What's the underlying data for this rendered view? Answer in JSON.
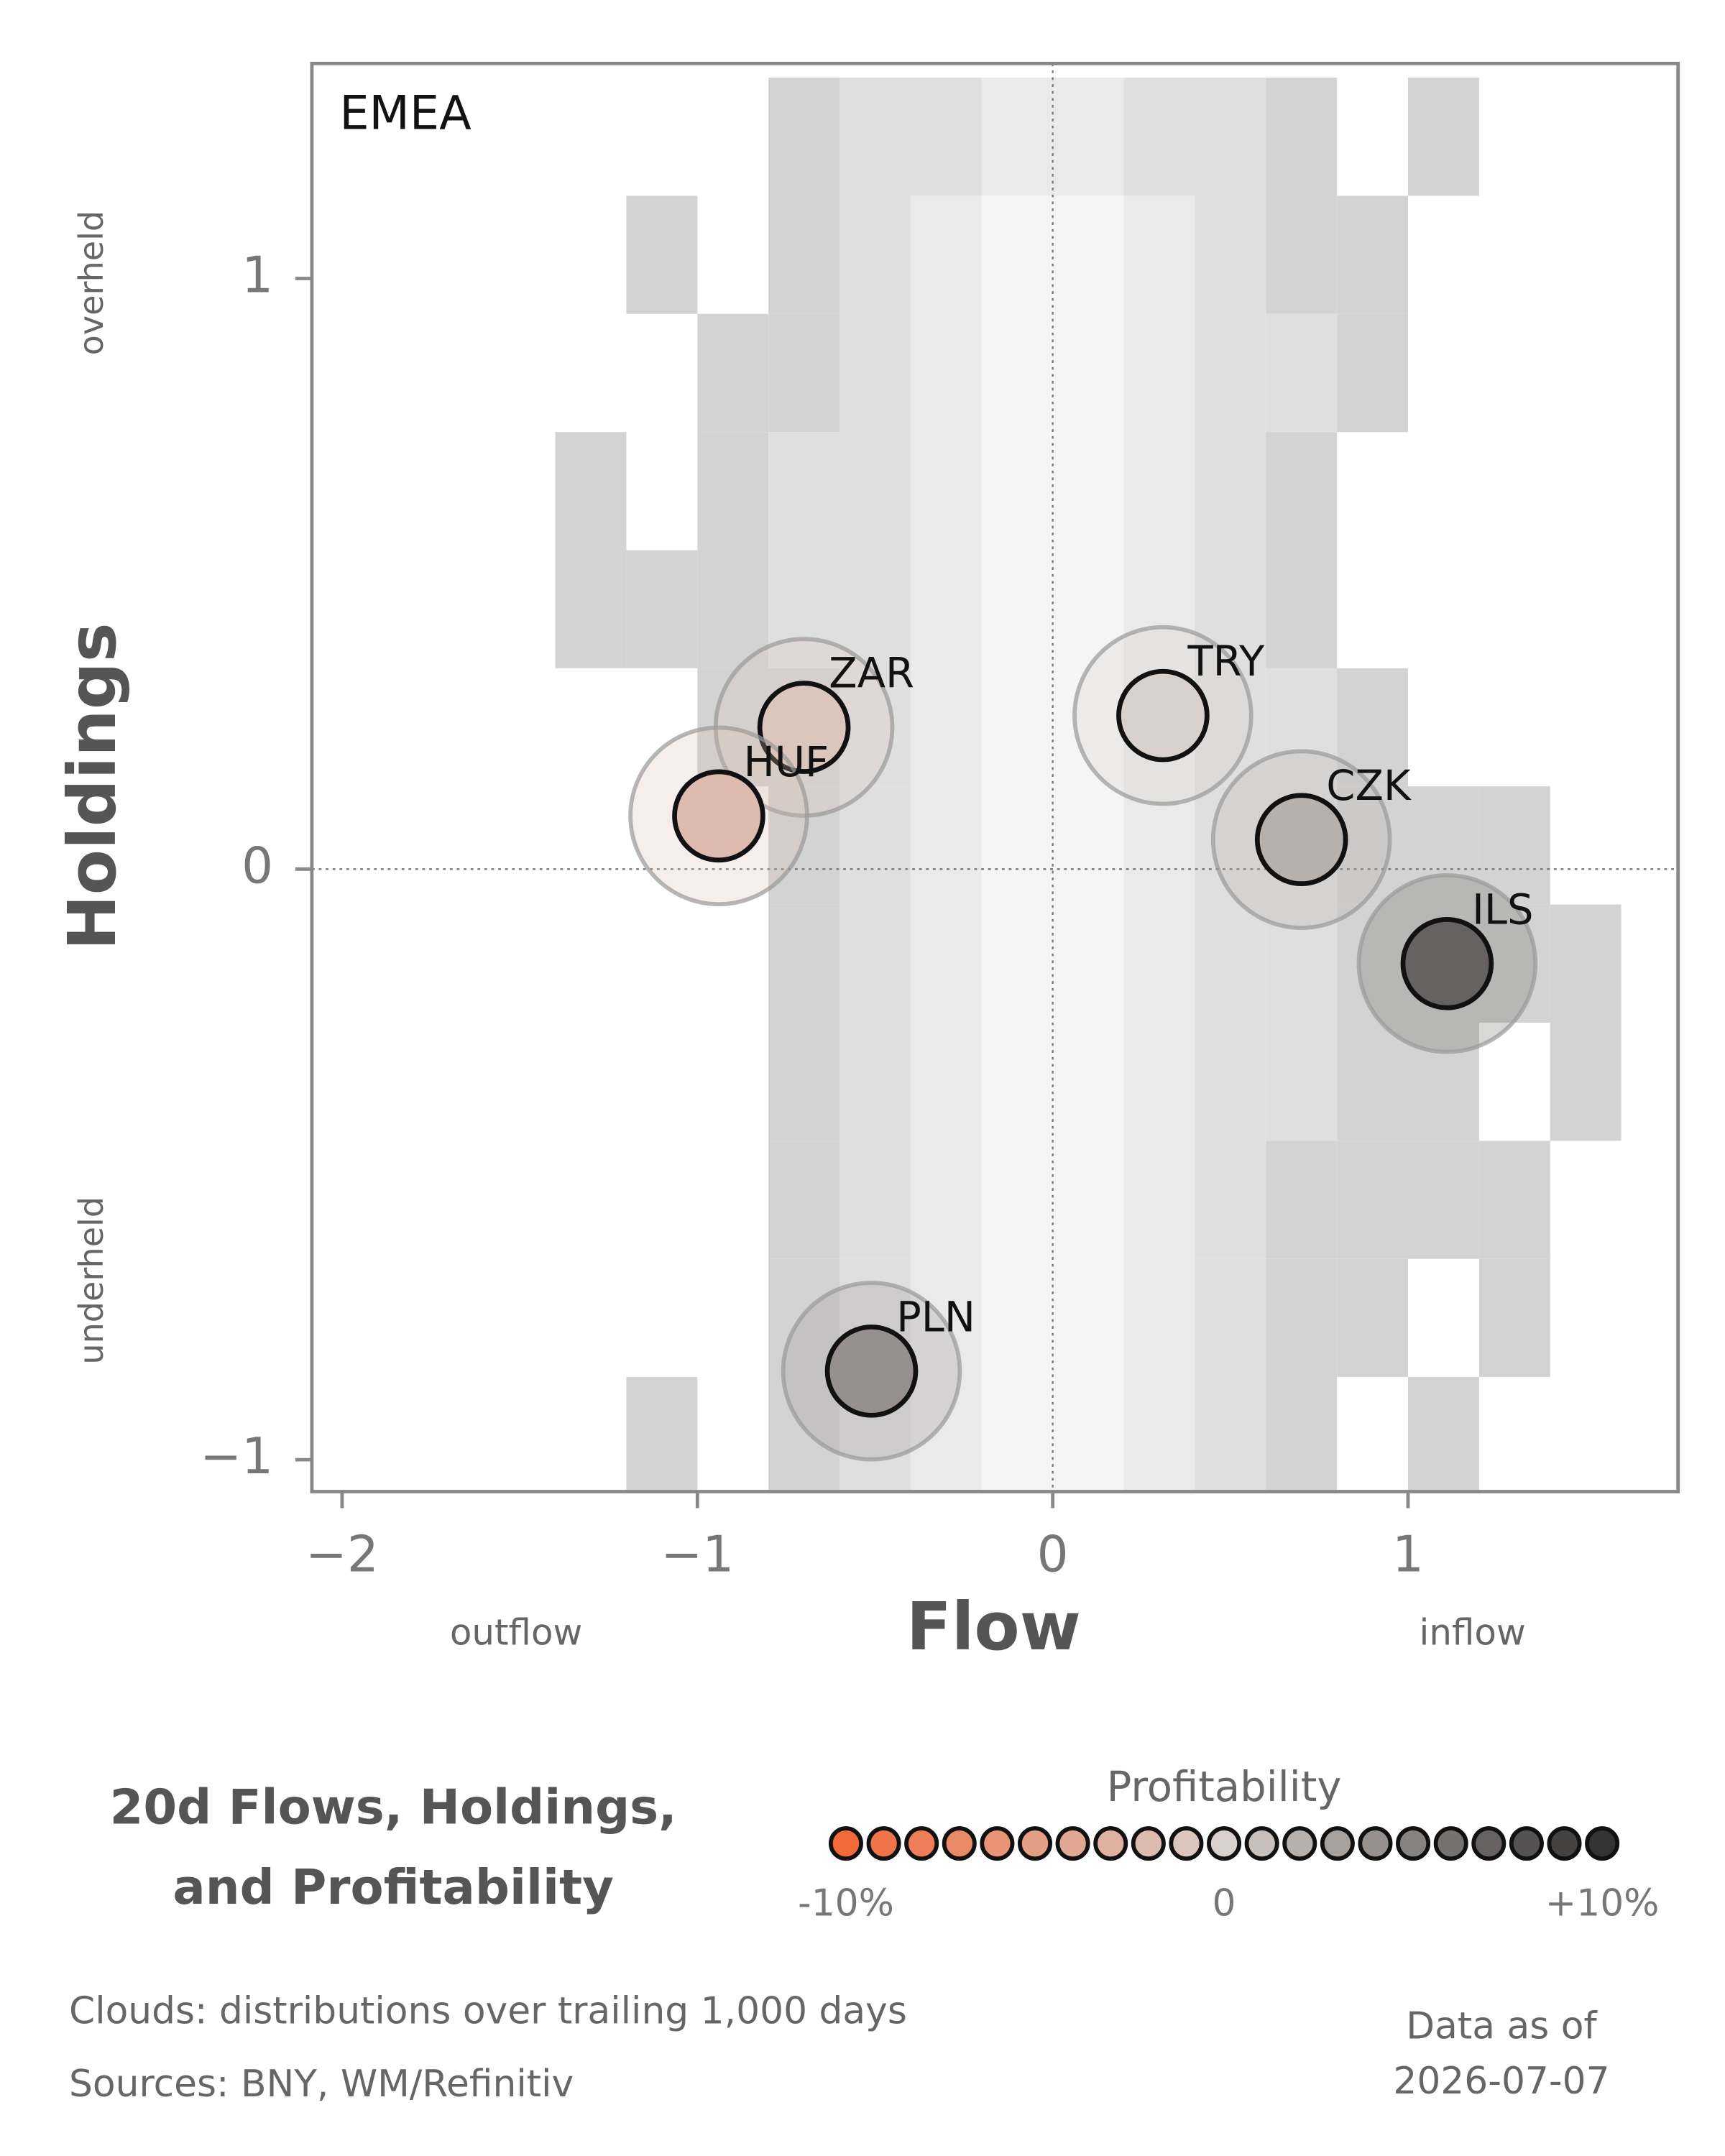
{
  "chart_data": {
    "type": "scatter",
    "panel_label": "EMEA",
    "x_label": "Flow",
    "y_label": "Holdings",
    "x_low_label": "outflow",
    "x_high_label": "inflow",
    "y_high_label": "overheld",
    "y_low_label": "underheld",
    "xlim": [
      -2.085,
      1.76
    ],
    "ylim": [
      -1.054,
      1.364
    ],
    "xticks": [
      {
        "value": -2,
        "label": "−2"
      },
      {
        "value": -1,
        "label": "−1"
      },
      0,
      1
    ],
    "yticks": [
      {
        "value": -1,
        "label": "−1"
      },
      0,
      1
    ],
    "labels": [
      "ZAR",
      "HUF",
      "TRY",
      "CZK",
      "ILS",
      "PLN"
    ],
    "x": [
      -0.7,
      -0.94,
      0.31,
      0.7,
      1.11,
      -0.51
    ],
    "y": [
      0.24,
      0.09,
      0.26,
      0.05,
      -0.16,
      -0.85
    ],
    "profitability": [
      -1,
      -2,
      0,
      2,
      7,
      4
    ],
    "clim": [
      -10,
      10
    ],
    "colors": [
      "#f26a3a",
      "#d8d0cc",
      "#333333"
    ],
    "cloud": {
      "x_edges": [
        -1.4,
        -1.2,
        -1.0,
        -0.8,
        -0.6,
        -0.4,
        -0.2,
        0.0,
        0.2,
        0.4,
        0.6,
        0.8,
        1.0,
        1.2,
        1.4,
        1.6
      ],
      "y_edges": [
        1.34,
        1.14,
        0.94,
        0.74,
        0.54,
        0.34,
        0.14,
        -0.06,
        -0.26,
        -0.46,
        -0.66,
        -0.86,
        -1.06
      ],
      "counts": [
        [
          0,
          0,
          0,
          1,
          2,
          2,
          3,
          3,
          2,
          2,
          1,
          0,
          1,
          0,
          0
        ],
        [
          0,
          1,
          0,
          1,
          2,
          3,
          4,
          4,
          3,
          2,
          1,
          1,
          0,
          0,
          0
        ],
        [
          0,
          0,
          1,
          1,
          2,
          3,
          4,
          4,
          3,
          2,
          2,
          1,
          0,
          0,
          0
        ],
        [
          1,
          0,
          1,
          2,
          2,
          3,
          4,
          4,
          3,
          2,
          1,
          0,
          0,
          0,
          0
        ],
        [
          1,
          1,
          1,
          2,
          2,
          3,
          4,
          4,
          3,
          2,
          1,
          0,
          0,
          0,
          0
        ],
        [
          0,
          0,
          1,
          1,
          2,
          3,
          4,
          4,
          3,
          2,
          2,
          1,
          0,
          0,
          0
        ],
        [
          0,
          0,
          0,
          1,
          2,
          3,
          4,
          4,
          3,
          2,
          2,
          1,
          1,
          1,
          0
        ],
        [
          0,
          0,
          0,
          1,
          2,
          3,
          4,
          4,
          3,
          2,
          2,
          1,
          1,
          1,
          1
        ],
        [
          0,
          0,
          0,
          1,
          2,
          3,
          4,
          4,
          3,
          2,
          2,
          1,
          1,
          0,
          1
        ],
        [
          0,
          0,
          0,
          1,
          2,
          3,
          4,
          4,
          3,
          2,
          1,
          1,
          1,
          1,
          0
        ],
        [
          0,
          0,
          0,
          1,
          2,
          3,
          4,
          4,
          3,
          2,
          1,
          1,
          0,
          1,
          0
        ],
        [
          0,
          1,
          0,
          1,
          2,
          3,
          4,
          4,
          3,
          2,
          1,
          0,
          1,
          0,
          0
        ]
      ]
    },
    "title": [
      "20d Flows, Holdings,",
      "and Profitability"
    ],
    "legend": {
      "title": "Profitability",
      "values": [
        -10,
        -9,
        -8,
        -7,
        -6,
        -5,
        -4,
        -3,
        -2,
        -1,
        0,
        1,
        2,
        3,
        4,
        5,
        6,
        7,
        8,
        9,
        10
      ],
      "ticks": [
        {
          "value": -10,
          "label": "-10%"
        },
        0,
        {
          "value": 10,
          "label": "+10%"
        }
      ]
    },
    "notes": [
      "Clouds:  distributions over trailing 1,000 days",
      "Sources:  BNY, WM/Refinitiv"
    ],
    "date_caption": [
      "Data as of",
      "2026-07-07"
    ]
  }
}
